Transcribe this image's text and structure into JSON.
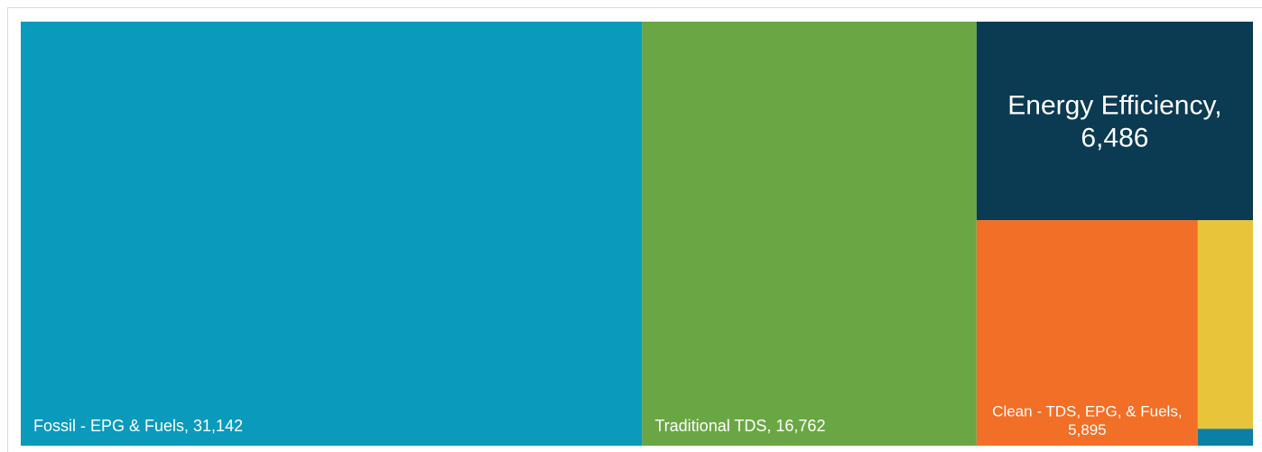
{
  "chart_data": {
    "type": "treemap",
    "labels": [
      "Fossil - EPG & Fuels, 31,142",
      "Traditional TDS, 16,762",
      "Energy Efficiency, 6,486",
      "Clean - TDS, EPG, & Fuels, 5,895",
      null,
      null
    ],
    "values": [
      31142,
      16762,
      6486,
      5895,
      1360,
      110
    ],
    "colors": [
      "#0a9abb",
      "#6aa744",
      "#0b3a53",
      "#f26f27",
      "#e8c43a",
      "#0c7fa6"
    ]
  }
}
